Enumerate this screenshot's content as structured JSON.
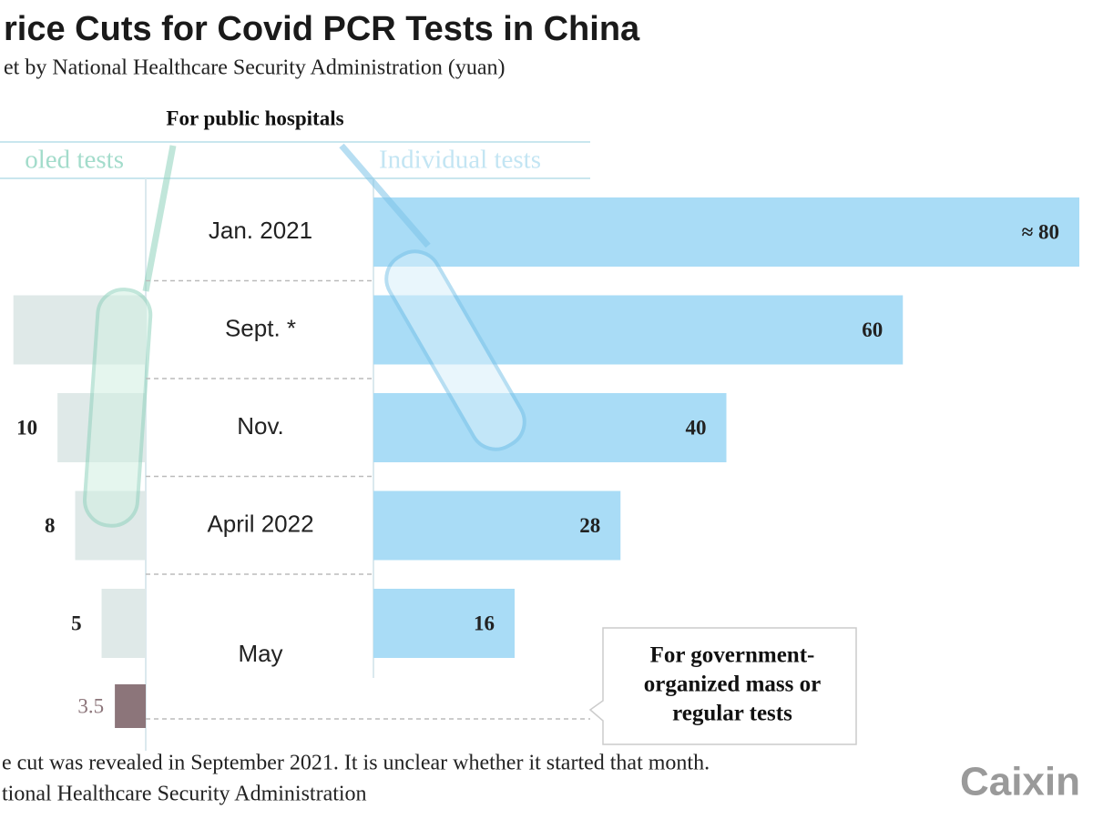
{
  "chart_data": {
    "type": "butterfly-bar",
    "title": "rice Cuts for Covid PCR Tests in China",
    "subtitle": "et by National Healthcare Security Administration (yuan)",
    "header": "For public hospitals",
    "categories": [
      "Jan. 2021",
      "Sept. *",
      "Nov.",
      "April 2022",
      "May"
    ],
    "series": [
      {
        "name": "oled tests",
        "color": "#dfe9e8",
        "label_color": "#a3dccb",
        "side": "left",
        "xlim": [
          0,
          16
        ],
        "values": [
          null,
          15,
          10,
          8,
          5
        ],
        "value_labels": [
          null,
          null,
          "10",
          "8",
          "5"
        ]
      },
      {
        "name": "Individual tests",
        "color": "#a9dcf6",
        "label_color": "#c3e5f3",
        "side": "right",
        "xlim": [
          0,
          80
        ],
        "values": [
          80,
          60,
          40,
          28,
          16
        ],
        "value_labels": [
          "≈ 80",
          "60",
          "40",
          "28",
          "16"
        ]
      }
    ],
    "annotation": {
      "lines": [
        "For government-",
        "organized mass or",
        "regular tests"
      ],
      "value": 3.5,
      "color": "#8c757a"
    },
    "notes": [
      "e cut was revealed in September 2021. It is unclear whether it started that month.",
      "tional Healthcare Security Administration"
    ],
    "logo": "Caixin"
  }
}
